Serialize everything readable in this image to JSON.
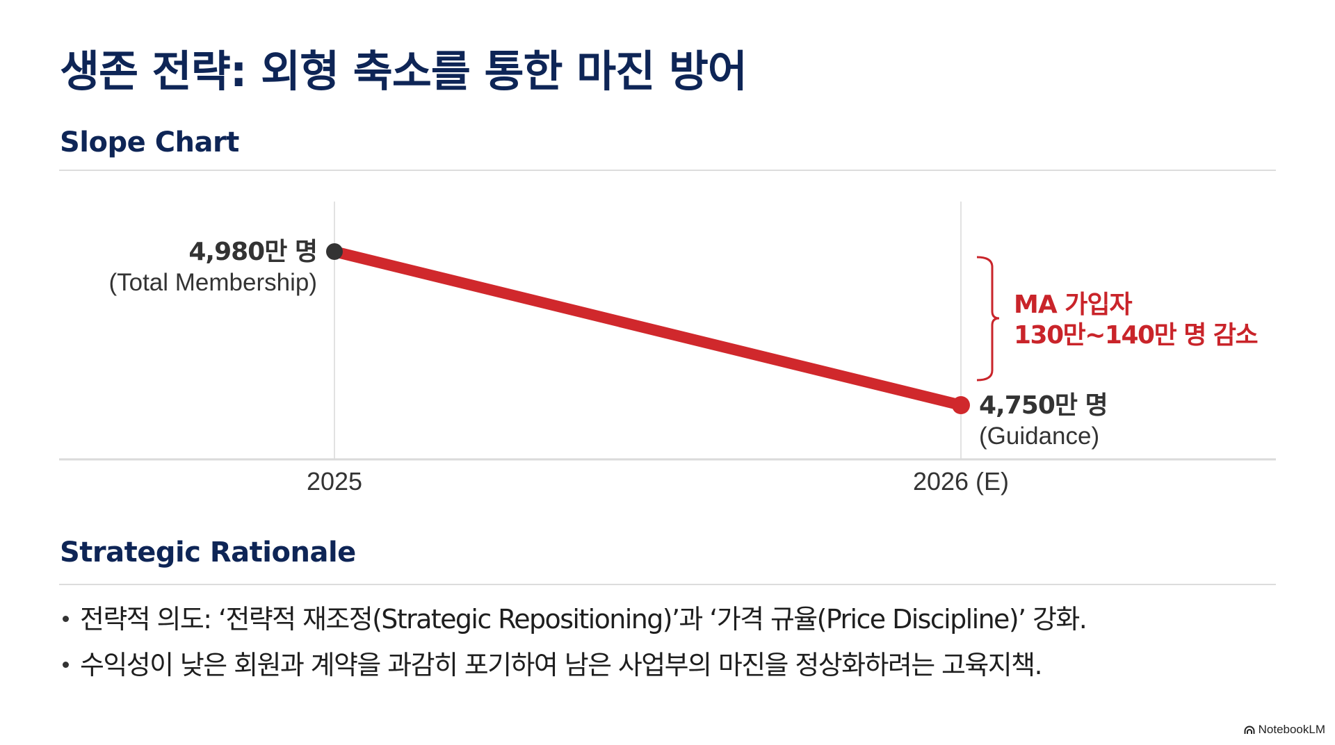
{
  "header": {
    "title": "생존 전략: 외형 축소를 통한 마진 방어"
  },
  "sections": {
    "chart_heading": "Slope Chart",
    "rationale_heading": "Strategic Rationale"
  },
  "chart_data": {
    "type": "line",
    "subtype": "slope",
    "title": "Slope Chart",
    "categories": [
      "2025",
      "2026 (E)"
    ],
    "series": [
      {
        "name": "Membership",
        "unit": "만 명",
        "values": [
          4980,
          4750
        ],
        "color": "#d0282c"
      }
    ],
    "data_labels": [
      {
        "value": "4,980만 명",
        "sublabel": "(Total Membership)",
        "dot_color": "#333333"
      },
      {
        "value": "4,750만 명",
        "sublabel": "(Guidance)",
        "dot_color": "#d0282c"
      }
    ],
    "annotation": {
      "line1": "MA 가입자",
      "line2": "130만~140만 명 감소",
      "color": "#c9242a"
    },
    "xlabel": "",
    "ylabel": "",
    "ylim": [
      4720,
      5010
    ],
    "grid": true
  },
  "rationale": {
    "bullets": [
      "전략적 의도: ‘전략적 재조정(Strategic Repositioning)’과 ‘가격 규율(Price Discipline)’ 강화.",
      "수익성이 낮은 회원과 계약을 과감히 포기하여 남은 사업부의 마진을 정상화하려는 고육지책."
    ]
  },
  "footer": {
    "brand": "NotebookLM",
    "brand_icon": "notebooklm-logo-icon"
  },
  "colors": {
    "heading": "#0e2556",
    "accent_red": "#d0282c",
    "rule": "#dcdcdc"
  }
}
